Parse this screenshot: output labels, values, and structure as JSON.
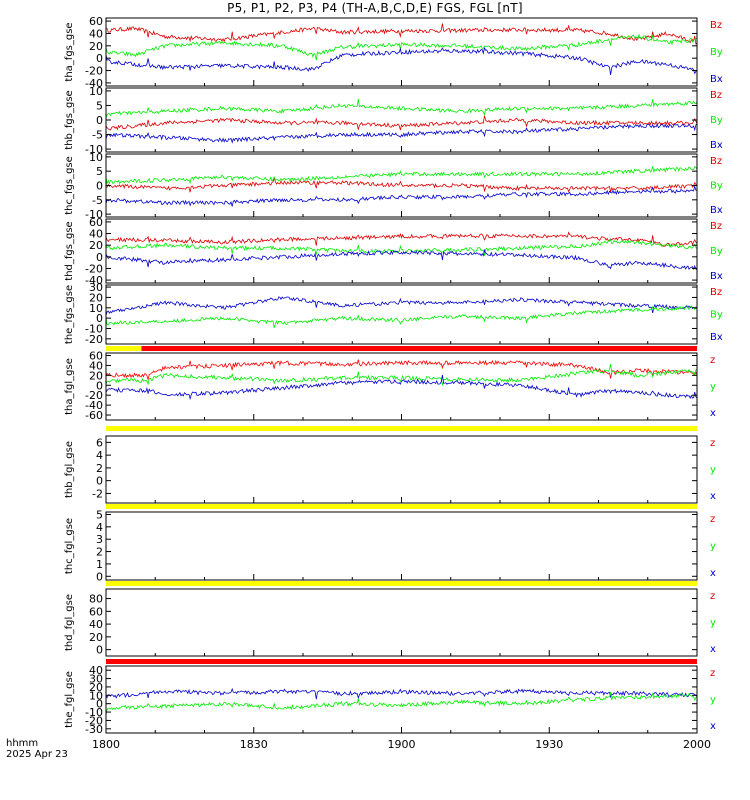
{
  "title": "P5, P1, P2, P3, P4 (TH-A,B,C,D,E) FGS, FGL [nT]",
  "footer": {
    "line1": "hhmm",
    "line2": "2025 Apr 23"
  },
  "colors": {
    "bx": "#0000cc",
    "by": "#00ee00",
    "bz": "#dd0000",
    "yellow": "#ffff00",
    "red": "#ff0000",
    "black": "#000000"
  },
  "chart_data": {
    "type": "line",
    "x_axis": {
      "range": [
        "18:00",
        "20:00"
      ],
      "tick_labels": [
        "1800",
        "1830",
        "1900",
        "1930",
        "2000"
      ]
    },
    "panels": [
      {
        "ylabel": "tha_fgs_gse",
        "yrange": [
          -45,
          65
        ],
        "ticks": [
          -40,
          -20,
          0,
          20,
          40,
          60
        ],
        "legend": [
          "Bz",
          "By",
          "Bx"
        ],
        "series": [
          {
            "name": "Bz",
            "color": "#dd0000",
            "x": [
              0,
              0.05,
              0.1,
              0.2,
              0.3,
              0.35,
              0.4,
              0.5,
              0.6,
              0.7,
              0.8,
              0.85,
              0.9,
              0.95,
              1.0
            ],
            "y": [
              45,
              48,
              35,
              30,
              42,
              48,
              42,
              44,
              45,
              46,
              45,
              40,
              30,
              40,
              25
            ]
          },
          {
            "name": "By",
            "color": "#00ee00",
            "x": [
              0,
              0.05,
              0.1,
              0.2,
              0.3,
              0.35,
              0.4,
              0.5,
              0.6,
              0.7,
              0.8,
              0.85,
              0.9,
              0.95,
              1.0
            ],
            "y": [
              10,
              5,
              20,
              25,
              20,
              5,
              18,
              22,
              20,
              15,
              22,
              30,
              35,
              25,
              30
            ]
          },
          {
            "name": "Bx",
            "color": "#0000cc",
            "x": [
              0,
              0.05,
              0.1,
              0.2,
              0.3,
              0.35,
              0.4,
              0.5,
              0.6,
              0.7,
              0.8,
              0.85,
              0.9,
              0.95,
              1.0
            ],
            "y": [
              -5,
              -10,
              -15,
              -12,
              -15,
              -18,
              5,
              10,
              12,
              8,
              0,
              -15,
              -5,
              -10,
              -20
            ]
          }
        ]
      },
      {
        "ylabel": "thb_fgs_gse",
        "yrange": [
          -11,
          11
        ],
        "ticks": [
          -10,
          -5,
          0,
          5,
          10
        ],
        "legend": [
          "Bz",
          "By",
          "Bx"
        ],
        "series": [
          {
            "name": "Bz",
            "color": "#dd0000",
            "x": [
              0,
              0.1,
              0.2,
              0.3,
              0.4,
              0.5,
              0.6,
              0.7,
              0.8,
              0.9,
              1.0
            ],
            "y": [
              -3,
              -1,
              0,
              -1,
              -1,
              -2,
              -1,
              0,
              -1,
              -1,
              -1
            ]
          },
          {
            "name": "By",
            "color": "#00ee00",
            "x": [
              0,
              0.1,
              0.2,
              0.3,
              0.4,
              0.5,
              0.6,
              0.7,
              0.8,
              0.9,
              1.0
            ],
            "y": [
              2,
              3,
              4,
              3,
              5,
              4,
              3,
              4,
              4,
              5,
              6
            ]
          },
          {
            "name": "Bx",
            "color": "#0000cc",
            "x": [
              0,
              0.1,
              0.2,
              0.3,
              0.4,
              0.5,
              0.6,
              0.7,
              0.8,
              0.9,
              1.0
            ],
            "y": [
              -5,
              -6,
              -7,
              -6,
              -5,
              -5,
              -4,
              -4,
              -3,
              -2,
              -2
            ]
          }
        ]
      },
      {
        "ylabel": "thc_fgs_gse",
        "yrange": [
          -11,
          11
        ],
        "ticks": [
          -10,
          -5,
          0,
          5,
          10
        ],
        "legend": [
          "Bz",
          "By",
          "Bx"
        ],
        "series": [
          {
            "name": "Bz",
            "color": "#dd0000",
            "x": [
              0,
              0.1,
              0.2,
              0.3,
              0.4,
              0.5,
              0.6,
              0.7,
              0.8,
              0.9,
              1.0
            ],
            "y": [
              0,
              -1,
              0,
              1,
              1,
              0,
              0,
              -1,
              -1,
              -1,
              0
            ]
          },
          {
            "name": "By",
            "color": "#00ee00",
            "x": [
              0,
              0.1,
              0.2,
              0.3,
              0.4,
              0.5,
              0.6,
              0.7,
              0.8,
              0.9,
              1.0
            ],
            "y": [
              1,
              2,
              3,
              2,
              3,
              4,
              4,
              4,
              4,
              5,
              6
            ]
          },
          {
            "name": "Bx",
            "color": "#0000cc",
            "x": [
              0,
              0.1,
              0.2,
              0.3,
              0.4,
              0.5,
              0.6,
              0.7,
              0.8,
              0.9,
              1.0
            ],
            "y": [
              -5,
              -6,
              -6,
              -5,
              -5,
              -4,
              -4,
              -3,
              -3,
              -2,
              -2
            ]
          }
        ]
      },
      {
        "ylabel": "thd_fgs_gse",
        "yrange": [
          -45,
          65
        ],
        "ticks": [
          -40,
          -20,
          0,
          20,
          40,
          60
        ],
        "legend": [
          "Bz",
          "By",
          "Bx"
        ],
        "series": [
          {
            "name": "Bz",
            "color": "#dd0000",
            "x": [
              0,
              0.1,
              0.2,
              0.3,
              0.4,
              0.5,
              0.6,
              0.7,
              0.8,
              0.85,
              0.9,
              0.95,
              1.0
            ],
            "y": [
              30,
              28,
              25,
              30,
              32,
              35,
              36,
              36,
              35,
              30,
              30,
              20,
              25
            ]
          },
          {
            "name": "By",
            "color": "#00ee00",
            "x": [
              0,
              0.1,
              0.2,
              0.3,
              0.4,
              0.5,
              0.6,
              0.7,
              0.8,
              0.85,
              0.9,
              0.95,
              1.0
            ],
            "y": [
              15,
              20,
              15,
              15,
              10,
              10,
              12,
              15,
              18,
              25,
              25,
              20,
              15
            ]
          },
          {
            "name": "Bx",
            "color": "#0000cc",
            "x": [
              0,
              0.1,
              0.2,
              0.3,
              0.4,
              0.5,
              0.6,
              0.7,
              0.8,
              0.85,
              0.9,
              0.95,
              1.0
            ],
            "y": [
              0,
              -10,
              -5,
              0,
              5,
              8,
              5,
              3,
              -2,
              -15,
              -10,
              -15,
              -20
            ]
          }
        ]
      },
      {
        "ylabel": "the_fgs_gse",
        "yrange": [
          -25,
          32
        ],
        "ticks": [
          -20,
          -10,
          0,
          10,
          20,
          30
        ],
        "legend": [
          "Bz",
          "By",
          "Bx"
        ],
        "series": [
          {
            "name": "Bx",
            "color": "#0000cc",
            "x": [
              0,
              0.1,
              0.2,
              0.3,
              0.4,
              0.5,
              0.6,
              0.7,
              0.8,
              0.9,
              1.0
            ],
            "y": [
              5,
              15,
              10,
              20,
              12,
              15,
              15,
              18,
              15,
              12,
              10
            ]
          },
          {
            "name": "By",
            "color": "#00ee00",
            "x": [
              0,
              0.1,
              0.2,
              0.3,
              0.4,
              0.5,
              0.6,
              0.7,
              0.8,
              0.9,
              1.0
            ],
            "y": [
              -5,
              -3,
              0,
              -5,
              0,
              -2,
              2,
              0,
              5,
              8,
              10
            ]
          }
        ]
      },
      {
        "ylabel": "tha_fgl_gse",
        "yrange": [
          -70,
          65
        ],
        "ticks": [
          -60,
          -40,
          -20,
          0,
          20,
          40,
          60
        ],
        "legend": [
          "z",
          "y",
          "x"
        ],
        "bar": [
          {
            "color": "#ffff00",
            "x": [
              0,
              0.06
            ]
          },
          {
            "color": "#ff0000",
            "x": [
              0.06,
              1.0
            ]
          }
        ],
        "series": [
          {
            "name": "z",
            "color": "#ff0000",
            "x": [
              0,
              0.07,
              0.1,
              0.2,
              0.3,
              0.4,
              0.5,
              0.6,
              0.7,
              0.8,
              0.85,
              0.9,
              1.0
            ],
            "y": [
              20,
              20,
              35,
              40,
              45,
              42,
              45,
              45,
              45,
              40,
              25,
              30,
              25
            ]
          },
          {
            "name": "y",
            "color": "#00ee00",
            "x": [
              0,
              0.07,
              0.1,
              0.2,
              0.3,
              0.4,
              0.5,
              0.6,
              0.7,
              0.8,
              0.85,
              0.9,
              1.0
            ],
            "y": [
              10,
              10,
              20,
              15,
              10,
              15,
              15,
              12,
              10,
              25,
              30,
              20,
              30
            ]
          },
          {
            "name": "x",
            "color": "#0000cc",
            "x": [
              0,
              0.07,
              0.1,
              0.2,
              0.3,
              0.4,
              0.5,
              0.6,
              0.7,
              0.8,
              0.85,
              0.9,
              1.0
            ],
            "y": [
              -10,
              -10,
              -20,
              -15,
              -5,
              5,
              8,
              5,
              0,
              -20,
              -10,
              -15,
              -25
            ]
          }
        ]
      },
      {
        "ylabel": "thb_fgl_gse",
        "yrange": [
          -3.5,
          7
        ],
        "ticks": [
          -2,
          0,
          2,
          4,
          6
        ],
        "legend": [
          "z",
          "y",
          "x"
        ],
        "bar": [
          {
            "color": "#ffff00",
            "x": [
              0,
              1.0
            ]
          }
        ],
        "series": []
      },
      {
        "ylabel": "thc_fgl_gse",
        "yrange": [
          -0.3,
          5.2
        ],
        "ticks": [
          0,
          1,
          2,
          3,
          4,
          5
        ],
        "legend": [
          "z",
          "y",
          "x"
        ],
        "bar": [
          {
            "color": "#ffff00",
            "x": [
              0,
              1.0
            ]
          }
        ],
        "series": []
      },
      {
        "ylabel": "thd_fgl_gse",
        "yrange": [
          -10,
          95
        ],
        "ticks": [
          0,
          20,
          40,
          60,
          80
        ],
        "legend": [
          "z",
          "y",
          "x"
        ],
        "bar": [
          {
            "color": "#ffff00",
            "x": [
              0,
              1.0
            ]
          }
        ],
        "series": []
      },
      {
        "ylabel": "the_fgl_gse",
        "yrange": [
          -35,
          45
        ],
        "ticks": [
          -30,
          -20,
          -10,
          0,
          10,
          20,
          30,
          40
        ],
        "legend": [
          "z",
          "y",
          "x"
        ],
        "bar": [
          {
            "color": "#ff0000",
            "x": [
              0,
              1.0
            ]
          }
        ],
        "series": [
          {
            "name": "x",
            "color": "#0000cc",
            "x": [
              0,
              0.1,
              0.2,
              0.3,
              0.4,
              0.5,
              0.6,
              0.7,
              0.8,
              0.9,
              1.0
            ],
            "y": [
              8,
              15,
              12,
              15,
              12,
              14,
              12,
              15,
              13,
              12,
              10
            ]
          },
          {
            "name": "y",
            "color": "#00ee00",
            "x": [
              0,
              0.1,
              0.2,
              0.3,
              0.4,
              0.5,
              0.6,
              0.7,
              0.8,
              0.9,
              1.0
            ],
            "y": [
              -5,
              -3,
              0,
              -5,
              0,
              -2,
              2,
              0,
              5,
              8,
              10
            ]
          }
        ]
      }
    ]
  }
}
